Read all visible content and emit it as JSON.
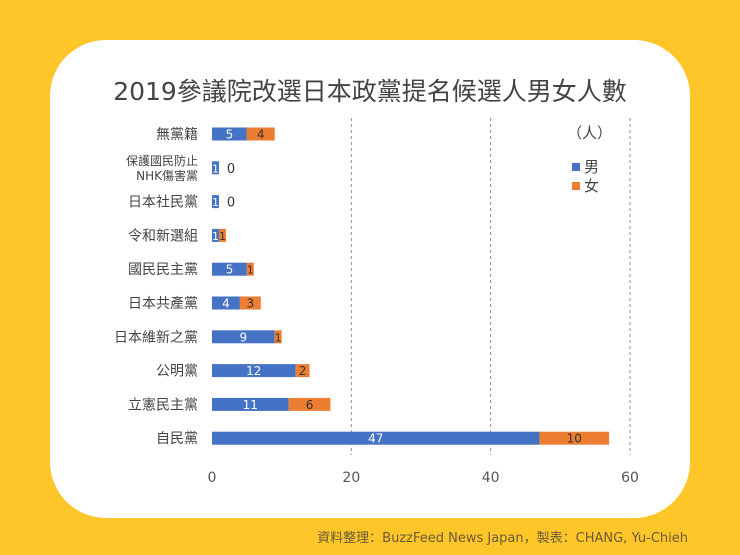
{
  "chart_data": {
    "type": "bar",
    "stacked": true,
    "orientation": "horizontal",
    "title": "2019參議院改選日本政黨提名候選人男女人數",
    "unit_label": "（人）",
    "categories": [
      "無黨籍",
      "保護國民防止NHK傷害黨",
      "日本社民黨",
      "令和新選組",
      "國民民主黨",
      "日本共產黨",
      "日本維新之黨",
      "公明黨",
      "立憲民主黨",
      "自民黨"
    ],
    "category_lines": [
      [
        "無黨籍"
      ],
      [
        "保護國民防止",
        "NHK傷害黨"
      ],
      [
        "日本社民黨"
      ],
      [
        "令和新選組"
      ],
      [
        "國民民主黨"
      ],
      [
        "日本共產黨"
      ],
      [
        "日本維新之黨"
      ],
      [
        "公明黨"
      ],
      [
        "立憲民主黨"
      ],
      [
        "自民黨"
      ]
    ],
    "series": [
      {
        "name": "男",
        "color": "#4472C4",
        "values": [
          5,
          1,
          1,
          1,
          5,
          4,
          9,
          12,
          11,
          47
        ]
      },
      {
        "name": "女",
        "color": "#ED7D31",
        "values": [
          4,
          0,
          0,
          1,
          1,
          3,
          1,
          2,
          6,
          10
        ]
      }
    ],
    "xlim": [
      0,
      60
    ],
    "xticks": [
      0,
      20,
      40,
      60
    ],
    "grid": "vertical dashed",
    "legend": "top-right"
  },
  "credit": "資料整理：BuzzFeed News Japan，製表：CHANG, Yu-Chieh"
}
